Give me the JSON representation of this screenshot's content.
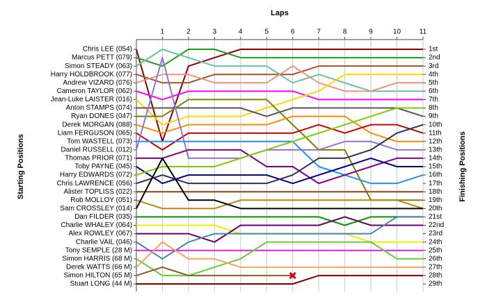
{
  "chart_data": {
    "type": "lap",
    "title": "Laps",
    "y_label": "Starting Positions",
    "y2_label": "Finishing Positions",
    "x": [
      0,
      1,
      2,
      3,
      4,
      5,
      6,
      7,
      8,
      9,
      10,
      11
    ],
    "xlim": [
      0,
      11
    ],
    "xticks": [
      1,
      2,
      3,
      4,
      5,
      6,
      7,
      8,
      9,
      10,
      11
    ],
    "ylim": [
      29,
      1
    ],
    "grid": true,
    "finish_labels": [
      "1st",
      "2nd",
      "3rd",
      "4th",
      "5th",
      "6th",
      "7th",
      "8th",
      "9th",
      "10th",
      "11th",
      "12th",
      "13th",
      "14th",
      "15th",
      "16th",
      "17th",
      "18th",
      "19th",
      "20th",
      "21st",
      "22nd",
      "23rd",
      "24th",
      "25th",
      "26th",
      "27th",
      "28th",
      "29th"
    ],
    "series": [
      {
        "name": "Chris LEE (054)",
        "color": "#8b0000",
        "values": [
          1,
          12,
          3,
          2,
          1,
          1,
          1,
          1,
          1,
          1,
          1,
          1
        ]
      },
      {
        "name": "Marcus PETT (079)",
        "color": "#229922",
        "values": [
          2,
          3,
          1,
          1,
          2,
          2,
          2,
          2,
          2,
          2,
          2,
          2
        ]
      },
      {
        "name": "Simon STEADY (063)",
        "color": "#66c2a5",
        "values": [
          3,
          1,
          2,
          3,
          3,
          3,
          5,
          4,
          5,
          6,
          6,
          6
        ]
      },
      {
        "name": "Harry HOLDBROOK (077)",
        "color": "#a0522d",
        "values": [
          4,
          5,
          5,
          4,
          4,
          4,
          4,
          3,
          3,
          3,
          3,
          3
        ]
      },
      {
        "name": "Andrew VIZARD (076)",
        "color": "#e9967a",
        "values": [
          5,
          4,
          4,
          5,
          5,
          5,
          3,
          5,
          6,
          6,
          5,
          5
        ]
      },
      {
        "name": "Cameron TAYLOR (062)",
        "color": "#ff00ff",
        "values": [
          6,
          7,
          6,
          6,
          6,
          6,
          6,
          7,
          7,
          7,
          7,
          7
        ]
      },
      {
        "name": "Jean-Luke LAISTER (016)",
        "color": "#ffd700",
        "values": [
          7,
          10,
          9,
          9,
          9,
          8,
          7,
          6,
          4,
          4,
          4,
          4
        ]
      },
      {
        "name": "Anton STAMPS (074)",
        "color": "#555555",
        "values": [
          8,
          8,
          8,
          8,
          8,
          9,
          8,
          8,
          8,
          8,
          8,
          9
        ]
      },
      {
        "name": "Ryan DONES (047)",
        "color": "#808000",
        "values": [
          9,
          9,
          7,
          7,
          7,
          7,
          10,
          13,
          13,
          19,
          19,
          19
        ]
      },
      {
        "name": "Derek MORGAN (088)",
        "color": "#ff8c00",
        "values": [
          10,
          11,
          10,
          10,
          10,
          10,
          9,
          9,
          9,
          11,
          12,
          12
        ]
      },
      {
        "name": "Liam FERGUSON (065)",
        "color": "#cc0000",
        "values": [
          11,
          13,
          11,
          11,
          11,
          11,
          11,
          10,
          11,
          10,
          10,
          11
        ]
      },
      {
        "name": "Tom WASTELL (073)",
        "color": "#1e90ff",
        "values": [
          12,
          12,
          12,
          12,
          12,
          12,
          12,
          15,
          16,
          17,
          17,
          16
        ]
      },
      {
        "name": "Daniel RUSSELL (012)",
        "color": "#9370db",
        "values": [
          13,
          2,
          14,
          14,
          14,
          13,
          13,
          13,
          12,
          12,
          13,
          13
        ]
      },
      {
        "name": "Thomas PRIOR (071)",
        "color": "#800080",
        "values": [
          14,
          14,
          13,
          13,
          13,
          15,
          15,
          17,
          16,
          15,
          14,
          14
        ]
      },
      {
        "name": "Toby PAYNE (045)",
        "color": "#00008b",
        "values": [
          15,
          17,
          16,
          16,
          16,
          16,
          17,
          16,
          15,
          14,
          15,
          15
        ]
      },
      {
        "name": "Harry EDWARDS (072)",
        "color": "#7ccd00",
        "values": [
          16,
          15,
          15,
          15,
          14,
          13,
          12,
          11,
          10,
          9,
          8,
          8
        ]
      },
      {
        "name": "Chris LAWRENCE (056)",
        "color": "#2f2f4f",
        "values": [
          17,
          16,
          17,
          17,
          17,
          17,
          16,
          14,
          14,
          13,
          11,
          10
        ]
      },
      {
        "name": "Alister TOPLISS (022)",
        "color": "#8b4513",
        "values": [
          18,
          18,
          18,
          18,
          18,
          18,
          18,
          18,
          18,
          18,
          18,
          18
        ]
      },
      {
        "name": "Rob MOLLOY (051)",
        "color": "#b8860b",
        "values": [
          19,
          20,
          20,
          20,
          19,
          19,
          19,
          19,
          19,
          19,
          19,
          20
        ]
      },
      {
        "name": "Sam CROSSLEY (014)",
        "color": "#000000",
        "values": [
          20,
          14,
          19,
          19,
          20,
          20,
          20,
          20,
          20,
          20,
          20,
          20
        ]
      },
      {
        "name": "Dan FILDER (035)",
        "color": "#009900",
        "values": [
          21,
          21,
          21,
          21,
          21,
          21,
          21,
          21,
          22,
          21,
          21,
          21
        ]
      },
      {
        "name": "Charlie WHALEY (064)",
        "color": "#eeee00",
        "values": [
          22,
          22,
          22,
          22,
          23,
          23,
          23,
          23,
          23,
          24,
          24,
          24
        ]
      },
      {
        "name": "Alex ROWLEY (067)",
        "color": "#660066",
        "values": [
          23,
          23,
          23,
          24,
          22,
          22,
          22,
          22,
          21,
          22,
          22,
          22
        ]
      },
      {
        "name": "Charlie VAIL (046)",
        "color": "#4682b4",
        "values": [
          24,
          26,
          24,
          23,
          23,
          23,
          23,
          23,
          23,
          23,
          21,
          21
        ]
      },
      {
        "name": "Tony SEMPLE (28 M)",
        "color": "#dd22dd",
        "values": [
          25,
          25,
          25,
          25,
          25,
          25,
          25,
          25,
          25,
          25,
          25,
          25
        ]
      },
      {
        "name": "Simon HARRIS (68 M)",
        "color": "#66cc33",
        "values": [
          26,
          28,
          28,
          27,
          26,
          24,
          24,
          24,
          24,
          24,
          26,
          26
        ]
      },
      {
        "name": "Derek WATTS (66 M)",
        "color": "#f4a460",
        "values": [
          27,
          24,
          26,
          26,
          27,
          27,
          27,
          27,
          27,
          27,
          27,
          27
        ]
      },
      {
        "name": "Simon HILTON (65 M)",
        "color": "#8b5a2b",
        "values": [
          28,
          27,
          28,
          28,
          28,
          28,
          28,
          null,
          null,
          null,
          null,
          null
        ]
      },
      {
        "name": "Stuart LONG (44 M)",
        "color": "#800000",
        "values": [
          29,
          29,
          29,
          29,
          29,
          29,
          29,
          28,
          28,
          28,
          28,
          28
        ]
      }
    ]
  }
}
